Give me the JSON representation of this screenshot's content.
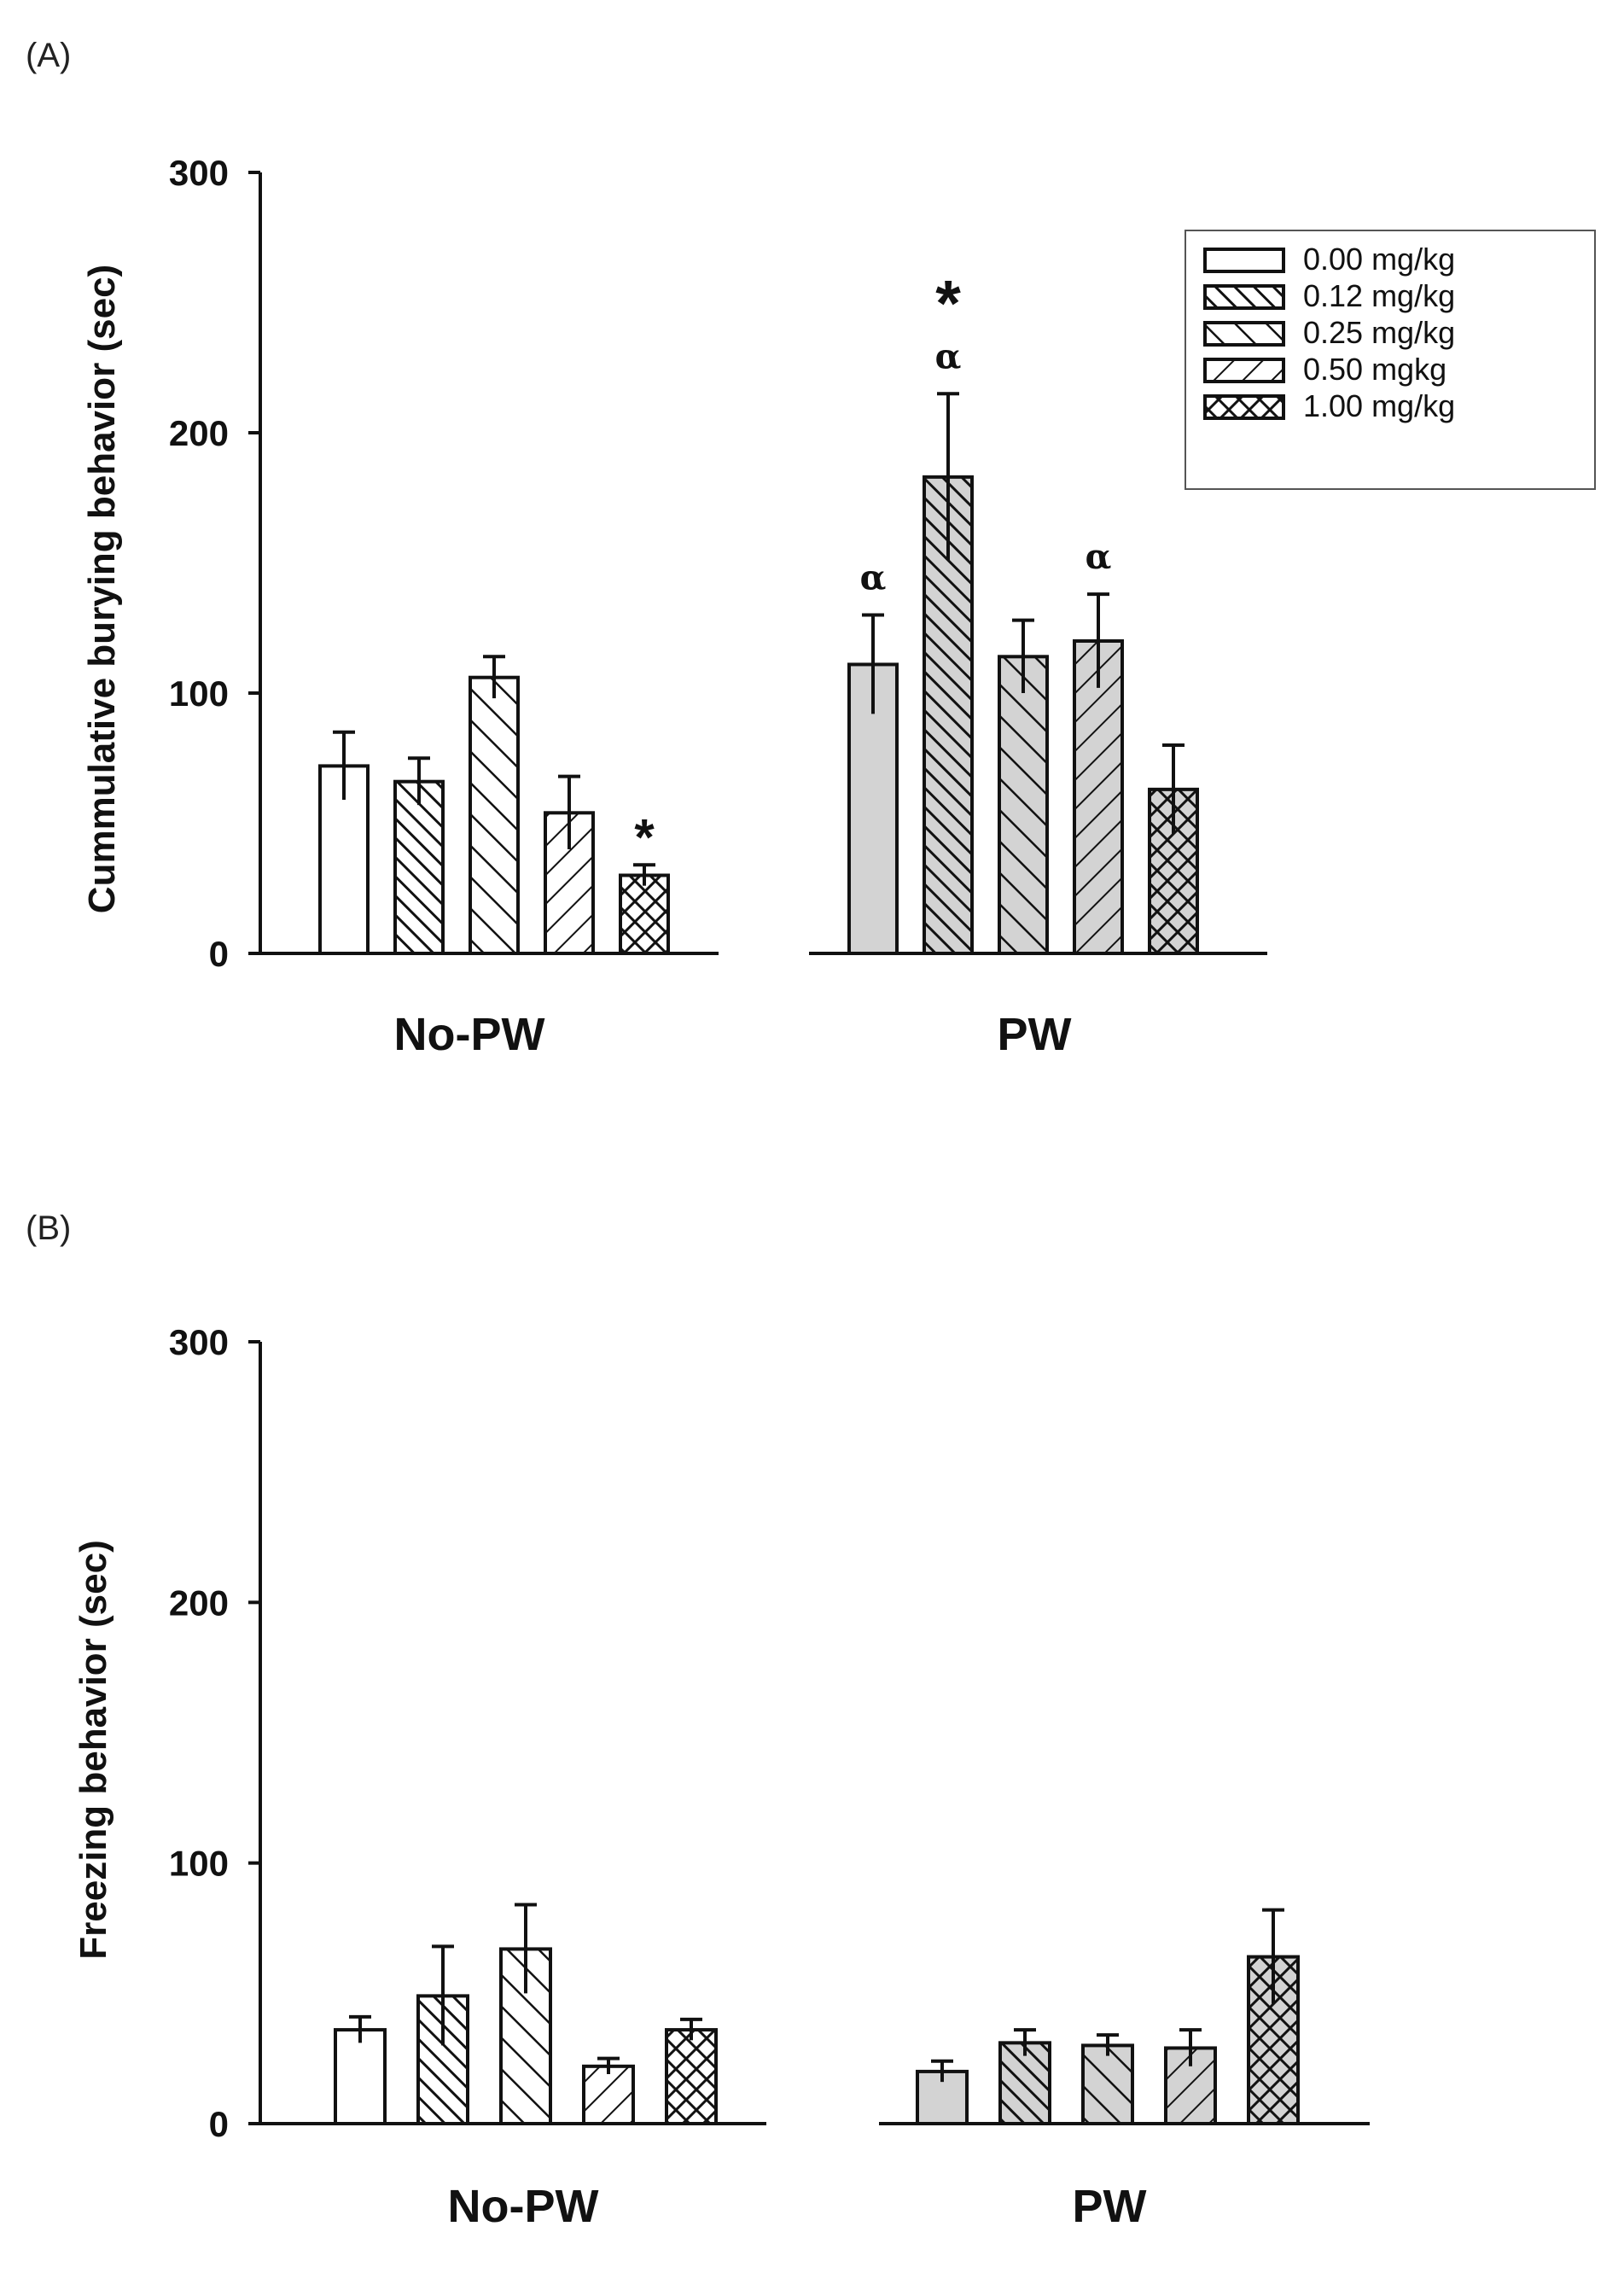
{
  "chart_data": [
    {
      "panel": "(A)",
      "type": "bar",
      "ylabel": "Cummulative burying behavior (sec)",
      "ylim": [
        0,
        300
      ],
      "yticks": [
        "0",
        "100",
        "200",
        "300"
      ],
      "groups": [
        "No-PW",
        "PW"
      ],
      "series": [
        {
          "name": "0.00 mg/kg",
          "pattern": "none",
          "values": [
            72,
            111
          ],
          "errors": [
            13,
            19
          ]
        },
        {
          "name": "0.12 mg/kg",
          "pattern": "diag-dense",
          "values": [
            66,
            183
          ],
          "errors": [
            9,
            32
          ]
        },
        {
          "name": "0.25 mg/kg",
          "pattern": "diag-wide",
          "values": [
            106,
            114
          ],
          "errors": [
            8,
            14
          ]
        },
        {
          "name": "0.50 mgkg",
          "pattern": "backdiag",
          "values": [
            54,
            120
          ],
          "errors": [
            14,
            18
          ]
        },
        {
          "name": "1.00 mg/kg",
          "pattern": "crosshatch",
          "values": [
            30,
            63
          ],
          "errors": [
            4,
            17
          ]
        }
      ],
      "group_fill": [
        "#ffffff",
        "#d3d3d3"
      ],
      "annotations": [
        {
          "text": "*",
          "group": 0,
          "series": 4,
          "size": "small"
        },
        {
          "text": "*",
          "group": 1,
          "series": 1,
          "size": "large"
        },
        {
          "text": "α",
          "group": 1,
          "series": 1
        },
        {
          "text": "α",
          "group": 1,
          "series": 0
        },
        {
          "text": "α",
          "group": 1,
          "series": 3
        }
      ],
      "legend_position": "top-right"
    },
    {
      "panel": "(B)",
      "type": "bar",
      "ylabel": "Freezing behavior (sec)",
      "ylim": [
        0,
        300
      ],
      "yticks": [
        "0",
        "100",
        "200",
        "300"
      ],
      "groups": [
        "No-PW",
        "PW"
      ],
      "series": [
        {
          "name": "0.00 mg/kg",
          "pattern": "none",
          "values": [
            36,
            20
          ],
          "errors": [
            5,
            4
          ]
        },
        {
          "name": "0.12 mg/kg",
          "pattern": "diag-dense",
          "values": [
            49,
            31
          ],
          "errors": [
            19,
            5
          ]
        },
        {
          "name": "0.25 mg/kg",
          "pattern": "diag-wide",
          "values": [
            67,
            30
          ],
          "errors": [
            17,
            4
          ]
        },
        {
          "name": "0.50 mgkg",
          "pattern": "backdiag",
          "values": [
            22,
            29
          ],
          "errors": [
            3,
            7
          ]
        },
        {
          "name": "1.00 mg/kg",
          "pattern": "crosshatch",
          "values": [
            36,
            64
          ],
          "errors": [
            4,
            18
          ]
        }
      ],
      "group_fill": [
        "#ffffff",
        "#d3d3d3"
      ],
      "annotations": [],
      "legend_position": "none"
    }
  ]
}
